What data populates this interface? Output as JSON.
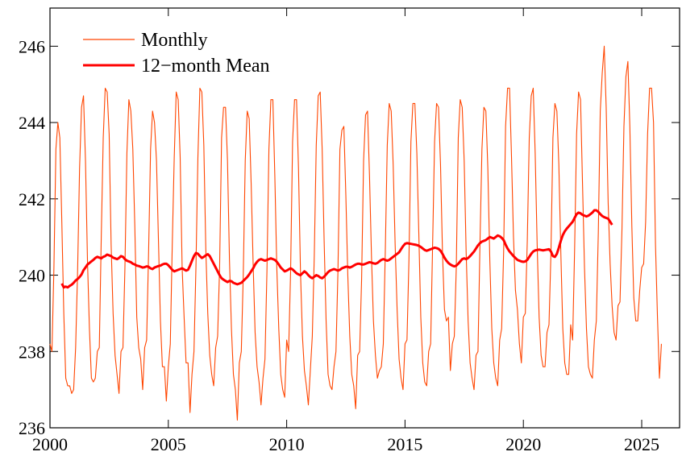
{
  "chart_data": {
    "type": "line",
    "title": "",
    "xlabel": "",
    "ylabel": "",
    "xlim": [
      2000.0,
      2026.6
    ],
    "ylim": [
      236.0,
      247.0
    ],
    "x_ticks": [
      2000,
      2005,
      2010,
      2015,
      2020,
      2025
    ],
    "x_tick_labels": [
      "2000",
      "2005",
      "2010",
      "2015",
      "2020",
      "2025"
    ],
    "y_ticks": [
      236,
      238,
      240,
      242,
      244,
      246
    ],
    "y_tick_labels": [
      "236",
      "238",
      "240",
      "242",
      "244",
      "246"
    ],
    "grid": false,
    "legend": {
      "position": "top-left",
      "entries": [
        "Monthly",
        "12−month Mean"
      ]
    },
    "colors": {
      "monthly": "#ff4500",
      "mean": "#ff0000"
    },
    "series": [
      {
        "name": "Monthly",
        "x_start": 2000.0,
        "x_step": 0.08333,
        "values": [
          238.2,
          238.0,
          240.2,
          243.3,
          244.0,
          243.6,
          241.4,
          239.0,
          237.3,
          237.1,
          237.1,
          236.9,
          237.0,
          238.1,
          240.1,
          242.8,
          244.4,
          244.7,
          243.0,
          240.4,
          238.6,
          237.3,
          237.2,
          237.3,
          238.0,
          238.1,
          241.0,
          243.6,
          244.9,
          244.8,
          243.7,
          240.8,
          239.0,
          237.9,
          237.4,
          236.9,
          238.0,
          238.1,
          240.2,
          243.2,
          244.6,
          244.3,
          243.3,
          241.3,
          238.9,
          238.1,
          237.8,
          237.0,
          238.1,
          238.3,
          240.6,
          243.3,
          244.3,
          244.0,
          243.0,
          240.9,
          238.8,
          237.6,
          237.6,
          236.7,
          237.6,
          238.2,
          240.8,
          243.1,
          244.8,
          244.6,
          243.1,
          240.2,
          238.9,
          237.7,
          237.7,
          236.4,
          237.4,
          238.0,
          240.2,
          243.1,
          244.9,
          244.8,
          243.4,
          240.7,
          239.0,
          237.9,
          237.4,
          237.1,
          238.1,
          238.4,
          240.2,
          243.6,
          244.4,
          244.4,
          243.0,
          240.4,
          238.6,
          237.4,
          237.0,
          236.2,
          237.7,
          238.0,
          240.0,
          243.0,
          244.3,
          244.1,
          242.4,
          240.3,
          238.5,
          237.6,
          237.2,
          236.6,
          237.3,
          237.8,
          240.1,
          243.3,
          244.6,
          244.6,
          242.6,
          240.2,
          238.6,
          237.4,
          237.0,
          236.8,
          238.3,
          238.0,
          240.1,
          243.5,
          244.6,
          244.6,
          242.8,
          240.1,
          238.4,
          237.5,
          237.1,
          236.6,
          237.5,
          238.4,
          240.5,
          243.4,
          244.7,
          244.8,
          243.3,
          240.9,
          238.8,
          237.4,
          237.1,
          237.0,
          237.6,
          238.0,
          240.1,
          243.3,
          243.8,
          243.9,
          242.1,
          240.0,
          238.4,
          237.4,
          237.1,
          236.5,
          237.9,
          238.0,
          239.9,
          243.0,
          244.2,
          244.3,
          242.6,
          240.5,
          238.8,
          237.9,
          237.3,
          237.5,
          237.6,
          238.2,
          240.6,
          243.4,
          244.5,
          244.3,
          242.9,
          240.8,
          239.1,
          237.8,
          237.3,
          237.0,
          238.2,
          238.3,
          240.4,
          243.5,
          244.5,
          244.5,
          243.2,
          241.1,
          238.9,
          237.7,
          237.2,
          237.1,
          238.0,
          238.2,
          240.8,
          243.5,
          244.5,
          244.4,
          242.9,
          240.6,
          239.1,
          238.8,
          238.9,
          237.5,
          238.2,
          238.4,
          240.2,
          243.6,
          244.6,
          244.4,
          243.0,
          240.6,
          238.8,
          237.7,
          237.3,
          237.0,
          237.9,
          238.0,
          240.8,
          243.3,
          244.4,
          244.3,
          242.8,
          240.4,
          238.6,
          237.7,
          237.3,
          237.1,
          238.3,
          238.6,
          240.6,
          243.9,
          244.9,
          244.9,
          243.1,
          241.0,
          239.6,
          239.1,
          238.2,
          237.7,
          238.9,
          239.0,
          240.9,
          243.6,
          244.7,
          244.9,
          243.2,
          240.8,
          238.9,
          237.9,
          237.6,
          237.6,
          238.5,
          238.7,
          240.6,
          243.6,
          244.5,
          244.3,
          242.9,
          240.6,
          238.6,
          237.7,
          237.4,
          237.4,
          238.7,
          238.3,
          240.7,
          243.7,
          244.8,
          244.6,
          242.4,
          240.2,
          238.6,
          237.6,
          237.4,
          237.3,
          238.3,
          238.8,
          241.1,
          244.3,
          245.3,
          246.0,
          244.4,
          241.9,
          240.3,
          239.2,
          238.5,
          238.3,
          239.2,
          239.3,
          241.2,
          243.9,
          245.2,
          245.6,
          243.9,
          241.3,
          239.4,
          238.8,
          238.8,
          239.6,
          240.2,
          240.3,
          241.4,
          243.7,
          244.9,
          244.9,
          244.0,
          240.8,
          238.9,
          237.3,
          238.2
        ]
      },
      {
        "name": "12−month Mean",
        "x_start": 2000.5,
        "x_step": 0.08333,
        "values": [
          239.78,
          239.68,
          239.7,
          239.68,
          239.72,
          239.75,
          239.8,
          239.86,
          239.9,
          239.95,
          240.02,
          240.13,
          240.2,
          240.28,
          240.32,
          240.36,
          240.4,
          240.45,
          240.48,
          240.46,
          240.44,
          240.48,
          240.5,
          240.54,
          240.52,
          240.5,
          240.46,
          240.44,
          240.42,
          240.45,
          240.5,
          240.48,
          240.42,
          240.38,
          240.36,
          240.34,
          240.3,
          240.28,
          240.25,
          240.24,
          240.22,
          240.2,
          240.21,
          240.23,
          240.22,
          240.18,
          240.16,
          240.2,
          240.22,
          240.24,
          240.25,
          240.28,
          240.3,
          240.3,
          240.26,
          240.2,
          240.14,
          240.1,
          240.12,
          240.14,
          240.16,
          240.18,
          240.15,
          240.12,
          240.14,
          240.25,
          240.38,
          240.5,
          240.58,
          240.56,
          240.5,
          240.45,
          240.48,
          240.52,
          240.55,
          240.5,
          240.4,
          240.3,
          240.2,
          240.1,
          240.0,
          239.92,
          239.88,
          239.85,
          239.82,
          239.85,
          239.84,
          239.8,
          239.78,
          239.76,
          239.78,
          239.8,
          239.85,
          239.9,
          239.95,
          240.02,
          240.1,
          240.18,
          240.28,
          240.35,
          240.4,
          240.42,
          240.4,
          240.38,
          240.4,
          240.42,
          240.44,
          240.42,
          240.4,
          240.35,
          240.28,
          240.2,
          240.15,
          240.1,
          240.12,
          240.15,
          240.18,
          240.15,
          240.1,
          240.05,
          240.02,
          240.0,
          240.05,
          240.1,
          240.06,
          240.0,
          239.95,
          239.92,
          239.96,
          240.0,
          239.98,
          239.94,
          239.92,
          239.96,
          240.02,
          240.08,
          240.12,
          240.14,
          240.16,
          240.14,
          240.12,
          240.14,
          240.18,
          240.2,
          240.22,
          240.22,
          240.2,
          240.22,
          240.25,
          240.28,
          240.3,
          240.3,
          240.28,
          240.28,
          240.3,
          240.32,
          240.34,
          240.33,
          240.31,
          240.3,
          240.32,
          240.36,
          240.4,
          240.42,
          240.4,
          240.38,
          240.4,
          240.44,
          240.48,
          240.52,
          240.56,
          240.6,
          240.68,
          240.76,
          240.82,
          240.84,
          240.83,
          240.82,
          240.81,
          240.8,
          240.79,
          240.77,
          240.74,
          240.7,
          240.66,
          240.64,
          240.66,
          240.68,
          240.7,
          240.72,
          240.71,
          240.69,
          240.64,
          240.56,
          240.46,
          240.38,
          240.32,
          240.28,
          240.25,
          240.23,
          240.25,
          240.3,
          240.36,
          240.42,
          240.44,
          240.42,
          240.45,
          240.5,
          240.56,
          240.62,
          240.7,
          240.78,
          240.84,
          240.88,
          240.9,
          240.92,
          240.96,
          241.0,
          240.98,
          240.96,
          241.0,
          241.04,
          241.02,
          240.98,
          240.92,
          240.8,
          240.7,
          240.62,
          240.56,
          240.5,
          240.45,
          240.4,
          240.38,
          240.36,
          240.35,
          240.36,
          240.4,
          240.48,
          240.56,
          240.62,
          240.65,
          240.66,
          240.67,
          240.66,
          240.65,
          240.66,
          240.67,
          240.68,
          240.62,
          240.5,
          240.48,
          240.56,
          240.72,
          240.9,
          241.05,
          241.15,
          241.22,
          241.28,
          241.34,
          241.4,
          241.5,
          241.6,
          241.64,
          241.62,
          241.58,
          241.56,
          241.54,
          241.56,
          241.6,
          241.64,
          241.7,
          241.7,
          241.66,
          241.6,
          241.55,
          241.52,
          241.5,
          241.48,
          241.4,
          241.32
        ]
      }
    ]
  }
}
